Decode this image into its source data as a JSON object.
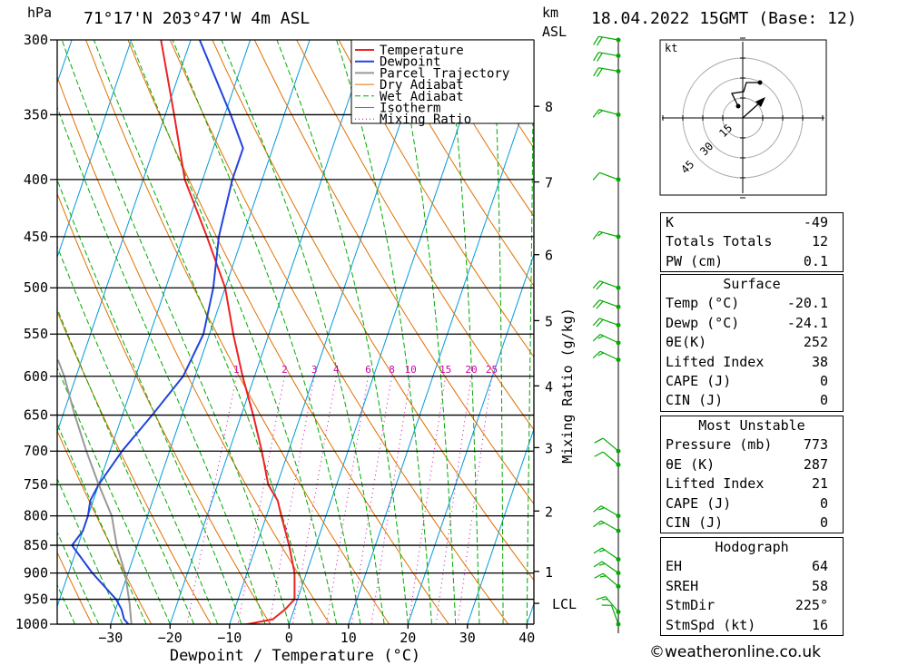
{
  "header": {
    "pressure_unit": "hPa",
    "location": "71°17'N 203°47'W 4m ASL",
    "km_label": "km",
    "asl_label": "ASL",
    "datetime": "18.04.2022 15GMT (Base: 12)"
  },
  "chart_data": {
    "type": "line",
    "title": "",
    "xlabel": "Dewpoint / Temperature (°C)",
    "ylabel": "hPa",
    "right_label": "Mixing Ratio (g/kg)",
    "xlim": [
      -40,
      40
    ],
    "ylim_hpa": [
      1000,
      300
    ],
    "x_ticks": [
      "-30",
      "-20",
      "-10",
      "0",
      "10",
      "20",
      "30",
      "40"
    ],
    "pressure_levels": [
      300,
      350,
      400,
      450,
      500,
      550,
      600,
      650,
      700,
      750,
      800,
      850,
      900,
      950,
      1000
    ],
    "km_ticks": [
      {
        "km": "1",
        "p": 897
      },
      {
        "km": "2",
        "p": 792
      },
      {
        "km": "3",
        "p": 695
      },
      {
        "km": "4",
        "p": 612
      },
      {
        "km": "5",
        "p": 535
      },
      {
        "km": "6",
        "p": 467
      },
      {
        "km": "7",
        "p": 402
      },
      {
        "km": "8",
        "p": 344
      }
    ],
    "lcl": {
      "label": "LCL",
      "p": 958
    },
    "mixing_ratio_labels": [
      "1",
      "2",
      "3",
      "4",
      "6",
      "8",
      "10",
      "15",
      "20",
      "25"
    ],
    "mixing_ratio_values": [
      1,
      2,
      3,
      4,
      6,
      8,
      10,
      15,
      20,
      25
    ],
    "legend": [
      "Temperature",
      "Dewpoint",
      "Parcel Trajectory",
      "Dry Adiabat",
      "Wet Adiabat",
      "Isotherm",
      "Mixing Ratio"
    ],
    "series": [
      {
        "name": "Temperature",
        "points": [
          [
            1012,
            -20.1
          ],
          [
            1000,
            -7
          ],
          [
            990,
            -3
          ],
          [
            970,
            -1.5
          ],
          [
            950,
            -0.5
          ],
          [
            900,
            -2
          ],
          [
            850,
            -4.5
          ],
          [
            800,
            -7.5
          ],
          [
            775,
            -9
          ],
          [
            750,
            -11.5
          ],
          [
            700,
            -14.5
          ],
          [
            650,
            -18
          ],
          [
            600,
            -22
          ],
          [
            550,
            -26
          ],
          [
            500,
            -30
          ],
          [
            450,
            -36
          ],
          [
            400,
            -43
          ],
          [
            350,
            -48.5
          ],
          [
            300,
            -55
          ]
        ]
      },
      {
        "name": "Dewpoint",
        "points": [
          [
            1012,
            -24.1
          ],
          [
            1000,
            -27
          ],
          [
            990,
            -28
          ],
          [
            970,
            -29
          ],
          [
            950,
            -30.5
          ],
          [
            900,
            -36
          ],
          [
            850,
            -41
          ],
          [
            825,
            -40
          ],
          [
            800,
            -40
          ],
          [
            775,
            -40.5
          ],
          [
            750,
            -40
          ],
          [
            700,
            -38
          ],
          [
            650,
            -35
          ],
          [
            600,
            -32
          ],
          [
            550,
            -31
          ],
          [
            500,
            -32
          ],
          [
            450,
            -34
          ],
          [
            400,
            -35
          ],
          [
            375,
            -35
          ],
          [
            350,
            -39
          ],
          [
            300,
            -48.5
          ],
          [
            295,
            -47
          ]
        ]
      },
      {
        "name": "Parcel Trajectory",
        "points": [
          [
            1012,
            -24.1
          ],
          [
            1000,
            -26.5
          ],
          [
            958,
            -28
          ],
          [
            900,
            -30.5
          ],
          [
            850,
            -33.5
          ],
          [
            800,
            -36
          ],
          [
            750,
            -40
          ],
          [
            700,
            -44
          ],
          [
            650,
            -48
          ],
          [
            600,
            -52
          ],
          [
            580,
            -54
          ]
        ]
      }
    ],
    "colors": {
      "temperature": "#ee2222",
      "dewpoint": "#2244dd",
      "parcel": "#999999",
      "dry_adiabat": "#e07000",
      "wet_adiabat": "#00aa00",
      "isotherm": "#0099dd",
      "mixing_ratio": "#cc00aa",
      "wind": "#00aa00"
    },
    "winds": [
      {
        "p": 300,
        "dir": 260,
        "spd": 20
      },
      {
        "p": 310,
        "dir": 260,
        "spd": 20
      },
      {
        "p": 320,
        "dir": 260,
        "spd": 20
      },
      {
        "p": 350,
        "dir": 255,
        "spd": 15
      },
      {
        "p": 400,
        "dir": 250,
        "spd": 10
      },
      {
        "p": 450,
        "dir": 255,
        "spd": 15
      },
      {
        "p": 500,
        "dir": 250,
        "spd": 20
      },
      {
        "p": 520,
        "dir": 250,
        "spd": 20
      },
      {
        "p": 540,
        "dir": 250,
        "spd": 20
      },
      {
        "p": 560,
        "dir": 245,
        "spd": 15
      },
      {
        "p": 580,
        "dir": 245,
        "spd": 15
      },
      {
        "p": 700,
        "dir": 230,
        "spd": 10
      },
      {
        "p": 720,
        "dir": 230,
        "spd": 10
      },
      {
        "p": 800,
        "dir": 240,
        "spd": 15
      },
      {
        "p": 825,
        "dir": 240,
        "spd": 15
      },
      {
        "p": 875,
        "dir": 235,
        "spd": 15
      },
      {
        "p": 900,
        "dir": 235,
        "spd": 15
      },
      {
        "p": 925,
        "dir": 230,
        "spd": 15
      },
      {
        "p": 975,
        "dir": 220,
        "spd": 15
      },
      {
        "p": 1000,
        "dir": 200,
        "spd": 10
      }
    ]
  },
  "hodograph": {
    "unit": "kt",
    "ring_labels": [
      "15",
      "30",
      "45"
    ]
  },
  "indices": {
    "main": [
      {
        "label": "K",
        "value": "-49"
      },
      {
        "label": "Totals Totals",
        "value": "12"
      },
      {
        "label": "PW (cm)",
        "value": "0.1"
      }
    ],
    "surface": {
      "title": "Surface",
      "rows": [
        {
          "label": "Temp (°C)",
          "value": "-20.1"
        },
        {
          "label": "Dewp (°C)",
          "value": "-24.1"
        },
        {
          "label": "θE(K)",
          "value": "252"
        },
        {
          "label": "Lifted Index",
          "value": "38"
        },
        {
          "label": "CAPE (J)",
          "value": "0"
        },
        {
          "label": "CIN (J)",
          "value": "0"
        }
      ]
    },
    "unstable": {
      "title": "Most Unstable",
      "rows": [
        {
          "label": "Pressure (mb)",
          "value": "773"
        },
        {
          "label": "θE (K)",
          "value": "287"
        },
        {
          "label": "Lifted Index",
          "value": "21"
        },
        {
          "label": "CAPE (J)",
          "value": "0"
        },
        {
          "label": "CIN (J)",
          "value": "0"
        }
      ]
    },
    "hodo": {
      "title": "Hodograph",
      "rows": [
        {
          "label": "EH",
          "value": "64"
        },
        {
          "label": "SREH",
          "value": "58"
        },
        {
          "label": "StmDir",
          "value": "225°"
        },
        {
          "label": "StmSpd (kt)",
          "value": "16"
        }
      ]
    }
  },
  "footer": {
    "credit": "©weatheronline.co.uk"
  }
}
